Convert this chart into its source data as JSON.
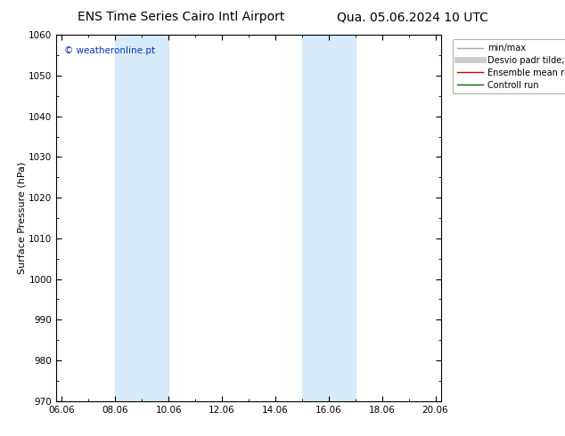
{
  "title_left": "ENS Time Series Cairo Intl Airport",
  "title_right": "Qua. 05.06.2024 10 UTC",
  "ylabel": "Surface Pressure (hPa)",
  "ylim": [
    970,
    1060
  ],
  "yticks": [
    970,
    980,
    990,
    1000,
    1010,
    1020,
    1030,
    1040,
    1050,
    1060
  ],
  "xtick_labels": [
    "06.06",
    "08.06",
    "10.06",
    "12.06",
    "14.06",
    "16.06",
    "18.06",
    "20.06"
  ],
  "xtick_positions": [
    0,
    2,
    4,
    6,
    8,
    10,
    12,
    14
  ],
  "xlim": [
    -0.2,
    14.2
  ],
  "shaded_bands": [
    {
      "xmin": 2.0,
      "xmax": 4.0
    },
    {
      "xmin": 9.0,
      "xmax": 11.0
    }
  ],
  "band_color": "#d8eaf8",
  "background_color": "#ffffff",
  "watermark": "© weatheronline.pt",
  "watermark_color": "#0033cc",
  "legend_items": [
    {
      "label": "min/max",
      "color": "#aaaaaa",
      "lw": 1.0
    },
    {
      "label": "Desvio padr tilde;o",
      "color": "#cccccc",
      "lw": 5
    },
    {
      "label": "Ensemble mean run",
      "color": "#cc0000",
      "lw": 1.0
    },
    {
      "label": "Controll run",
      "color": "#006600",
      "lw": 1.0
    }
  ],
  "title_fontsize": 10,
  "ylabel_fontsize": 8,
  "tick_fontsize": 7.5,
  "legend_fontsize": 7,
  "watermark_fontsize": 7.5
}
